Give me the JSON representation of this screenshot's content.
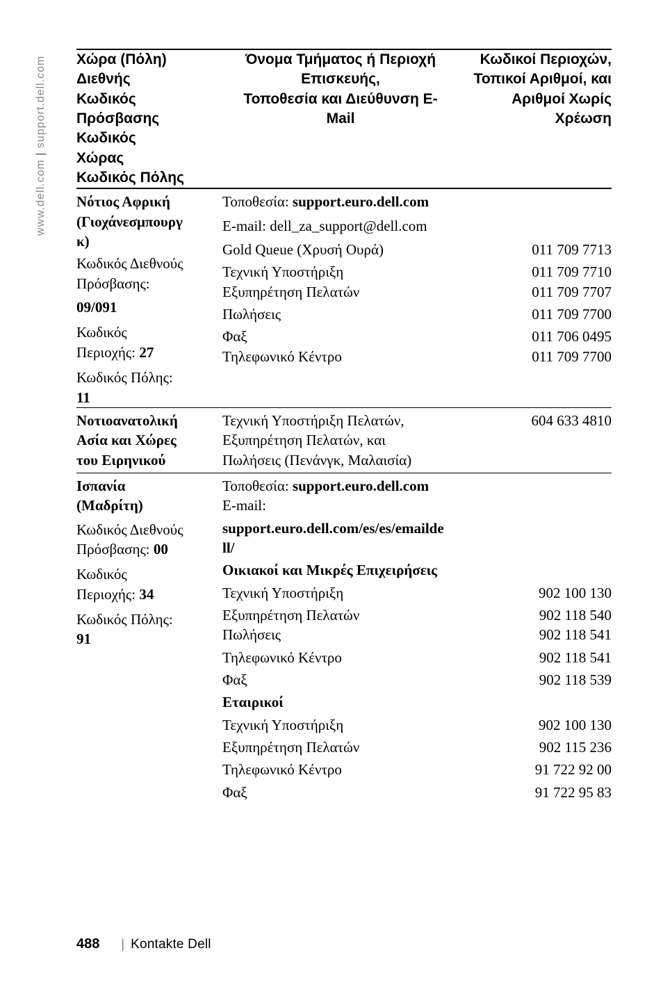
{
  "sidetext": "www.dell.com | support.dell.com",
  "header": {
    "col1": "Χώρα (Πόλη)\nΔιεθνής\nΚωδικός\nΠρόσβασης\nΚωδικός\nΧώρας\nΚωδικός Πόλης",
    "col2": "Όνομα Τμήματος ή Περιοχή\nΕπισκευής,\nΤοποθεσία και Διεύθυνση E-\nMail",
    "col3": "Κωδικοί Περιοχών,\nΤοπικοί Αριθμοί, και\nΑριθμοί Χωρίς\nΧρέωση"
  },
  "s1": {
    "left_l1": "Νότιος Αφρική",
    "left_l2": "(Γιοχάνεσμπουργ",
    "left_l3": "κ)",
    "left_l4": "Κωδικός Διεθνούς",
    "left_l5": "Πρόσβασης:",
    "left_l6": "09/091",
    "left_l7": "Κωδικός",
    "left_l8a": "Περιοχής: ",
    "left_l8b": "27",
    "left_l9": "Κωδικός Πόλης:",
    "left_l10": "11",
    "mid_l1a": "Τοποθεσία: ",
    "mid_l1b": "support.euro.dell.com",
    "mid_l2": "E-mail: dell_za_support@dell.com",
    "mid_l3": "Gold Queue (Χρυσή Ουρά)",
    "mid_l4": "Τεχνική Υποστήριξη",
    "mid_l5": "Εξυπηρέτηση Πελατών",
    "mid_l6": "Πωλήσεις",
    "mid_l7": "Φαξ",
    "mid_l8": "Τηλεφωνικό Κέντρο",
    "r3": "011  709 7713",
    "r4": "011 709 7710",
    "r5": "011 709 7707",
    "r6": "011 709 7700",
    "r7": "011 706 0495",
    "r8": "011 709 7700"
  },
  "s2": {
    "left_l1": "Νοτιοανατολική",
    "left_l2": "Ασία και Χώρες",
    "left_l3": "του Ειρηνικού",
    "mid_l1": "Τεχνική Υποστήριξη Πελατών,",
    "mid_l2": "Εξυπηρέτηση Πελατών, και",
    "mid_l3": "Πωλήσεις (Πενάνγκ, Μαλαισία)",
    "r1": "604 633 4810"
  },
  "s3": {
    "left_l1": "Ισπανία",
    "left_l2": "(Μαδρίτη)",
    "left_l3": "Κωδικός Διεθνούς",
    "left_l4a": "Πρόσβασης: ",
    "left_l4b": "00",
    "left_l5": "Κωδικός",
    "left_l6a": "Περιοχής: ",
    "left_l6b": "34",
    "left_l7": "Κωδικός Πόλης:",
    "left_l8": "91",
    "mid_l1a": "Τοποθεσία: ",
    "mid_l1b": "support.euro.dell.com",
    "mid_l2": "E-mail:",
    "mid_l3": "support.euro.dell.com/es/es/emailde",
    "mid_l4": "ll/",
    "mid_h1": "Οικιακοί και Μικρές Επιχειρήσεις",
    "mid_l5": "Τεχνική Υποστήριξη",
    "mid_l6": "Εξυπηρέτηση Πελατών",
    "mid_l7": "Πωλήσεις",
    "mid_l8": "Τηλεφωνικό Κέντρο",
    "mid_l9": "Φαξ",
    "mid_h2": "Εταιρικοί",
    "mid_l10": "Τεχνική Υποστήριξη",
    "mid_l11": "Εξυπηρέτηση Πελατών",
    "mid_l12": "Τηλεφωνικό Κέντρο",
    "mid_l13": "Φαξ",
    "r5": "902 100 130",
    "r6": "902 118 540",
    "r7": "902 118 541",
    "r8": "902 118 541",
    "r9": "902 118 539",
    "r10": "902 100 130",
    "r11": "902 115 236",
    "r12": "91 722 92 00",
    "r13": "91 722 95 83"
  },
  "footer": {
    "page": "488",
    "sep": "|",
    "title": "Kontakte Dell"
  }
}
